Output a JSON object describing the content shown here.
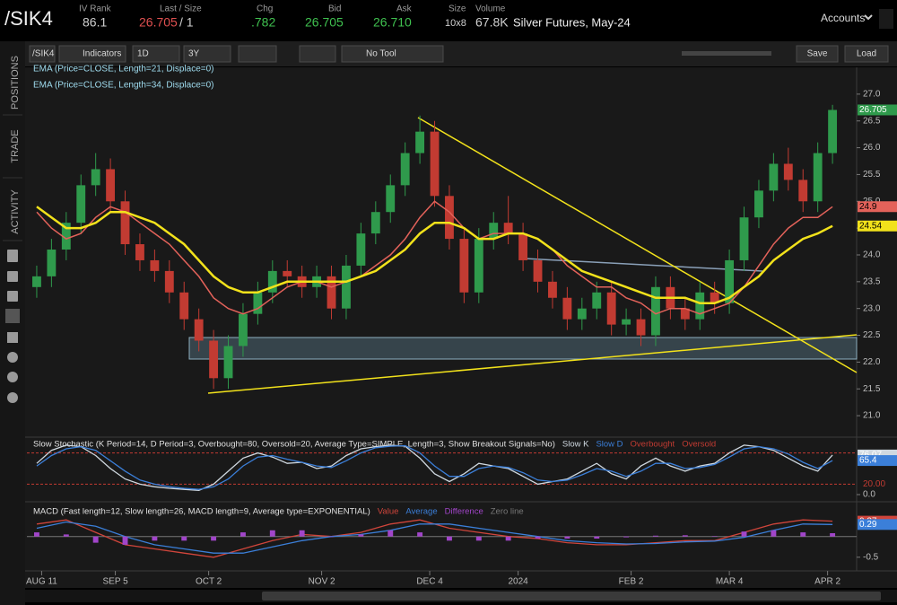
{
  "header": {
    "symbol": "/SIK4",
    "iv_rank_label": "IV Rank",
    "iv_rank": "86.1",
    "last_label": "Last / Size",
    "last": "26.705",
    "size": "/ 1",
    "chg_label": "Chg",
    "chg": ".782",
    "bid_label": "Bid",
    "bid": "26.705",
    "ask_label": "Ask",
    "ask": "26.710",
    "size2_label": "Size",
    "size2": "10x8",
    "volume_label": "Volume",
    "volume": "67.8K",
    "description": "Silver Futures, May-24",
    "accounts": "Accounts"
  },
  "sidebar": [
    "POSITIONS",
    "TRADE",
    "ACTIVITY"
  ],
  "toolbar": {
    "symbol": "/SIK4",
    "indicators": "Indicators",
    "aggregation": "1D",
    "range": "3Y",
    "tool": "No Tool",
    "save": "Save",
    "load": "Load"
  },
  "chart_data": [
    {
      "type": "candlestick",
      "x": [
        0,
        3,
        6,
        9,
        12,
        15,
        18,
        21,
        24,
        27,
        30,
        33,
        36,
        39,
        42,
        45,
        48,
        51,
        54,
        57,
        60,
        63,
        66,
        69,
        72,
        75,
        78,
        81,
        84,
        87,
        90,
        93,
        96,
        99,
        102,
        105,
        108,
        111,
        114,
        117,
        120,
        123,
        126,
        129,
        132,
        135,
        138,
        141,
        144,
        147,
        150,
        153,
        156,
        159,
        162
      ],
      "open": [
        23.4,
        23.6,
        24.1,
        24.6,
        25.3,
        25.6,
        25.0,
        24.2,
        23.9,
        23.7,
        23.3,
        22.8,
        22.4,
        21.7,
        22.3,
        22.9,
        23.3,
        23.7,
        23.6,
        23.4,
        23.6,
        23.0,
        23.8,
        24.4,
        24.8,
        25.3,
        25.9,
        26.3,
        25.1,
        24.3,
        23.3,
        24.3,
        24.6,
        24.4,
        23.9,
        23.5,
        23.2,
        22.8,
        23.0,
        23.3,
        22.7,
        22.8,
        22.5,
        23.4,
        23.0,
        22.8,
        23.3,
        23.1,
        23.9,
        24.7,
        25.2,
        25.7,
        25.4,
        25.0,
        25.9
      ],
      "high": [
        23.8,
        24.3,
        24.8,
        25.5,
        25.9,
        25.8,
        25.2,
        24.4,
        24.1,
        23.9,
        23.5,
        23.0,
        22.6,
        22.5,
        23.1,
        23.5,
        23.9,
        23.9,
        23.8,
        23.8,
        23.8,
        24.0,
        24.6,
        25.0,
        25.5,
        26.1,
        26.6,
        26.5,
        25.3,
        24.5,
        24.5,
        24.8,
        25.1,
        24.6,
        24.1,
        23.7,
        23.4,
        23.2,
        23.5,
        23.5,
        23.0,
        23.0,
        23.6,
        23.6,
        23.2,
        23.5,
        23.5,
        24.1,
        24.9,
        25.4,
        25.9,
        26.0,
        25.6,
        26.1,
        26.8
      ],
      "low": [
        23.2,
        23.4,
        23.9,
        24.4,
        25.1,
        24.8,
        24.0,
        23.7,
        23.5,
        23.1,
        22.6,
        22.2,
        21.5,
        21.5,
        22.1,
        22.7,
        23.1,
        23.4,
        23.2,
        23.2,
        22.8,
        22.8,
        23.6,
        24.2,
        24.6,
        25.1,
        25.7,
        24.9,
        24.1,
        23.1,
        23.1,
        24.1,
        24.2,
        23.7,
        23.3,
        23.0,
        22.6,
        22.6,
        22.8,
        22.5,
        22.5,
        22.3,
        22.3,
        22.8,
        22.6,
        22.6,
        22.9,
        22.9,
        23.7,
        24.5,
        25.0,
        25.2,
        24.8,
        24.8,
        25.7
      ],
      "close": [
        23.6,
        24.1,
        24.6,
        25.3,
        25.6,
        25.0,
        24.2,
        23.9,
        23.7,
        23.3,
        22.8,
        22.4,
        21.7,
        22.3,
        22.9,
        23.3,
        23.7,
        23.6,
        23.4,
        23.6,
        23.0,
        23.8,
        24.4,
        24.8,
        25.3,
        25.9,
        26.3,
        25.1,
        24.3,
        23.3,
        24.3,
        24.6,
        24.4,
        23.9,
        23.5,
        23.2,
        22.8,
        23.0,
        23.3,
        22.7,
        22.8,
        22.5,
        23.4,
        23.0,
        22.8,
        23.3,
        23.1,
        23.9,
        24.7,
        25.2,
        25.7,
        25.4,
        25.0,
        25.9,
        26.705
      ],
      "up_color": "#2f9a4c",
      "down_color": "#c23b32",
      "last_color": "#2f9a4c",
      "series": [
        {
          "name": "EMA (Price=CLOSE, Length=21, Displace=0)",
          "color": "#e3625a",
          "values": [
            24.8,
            24.5,
            24.3,
            24.4,
            24.7,
            24.9,
            24.8,
            24.6,
            24.4,
            24.2,
            23.9,
            23.6,
            23.2,
            23.0,
            22.9,
            23.0,
            23.2,
            23.4,
            23.5,
            23.5,
            23.4,
            23.5,
            23.6,
            23.8,
            24.0,
            24.3,
            24.7,
            25.0,
            24.8,
            24.5,
            24.3,
            24.4,
            24.4,
            24.4,
            24.3,
            24.1,
            23.8,
            23.6,
            23.4,
            23.4,
            23.2,
            23.1,
            22.9,
            23.0,
            23.0,
            22.9,
            23.0,
            23.1,
            23.4,
            23.8,
            24.2,
            24.5,
            24.7,
            24.7,
            24.9
          ]
        },
        {
          "name": "EMA (Price=CLOSE, Length=34, Displace=0)",
          "color": "#f2e21b",
          "values": [
            24.9,
            24.7,
            24.5,
            24.5,
            24.6,
            24.8,
            24.8,
            24.7,
            24.6,
            24.4,
            24.2,
            23.9,
            23.6,
            23.4,
            23.3,
            23.3,
            23.4,
            23.5,
            23.5,
            23.5,
            23.5,
            23.5,
            23.6,
            23.7,
            23.9,
            24.1,
            24.4,
            24.6,
            24.6,
            24.5,
            24.3,
            24.3,
            24.4,
            24.4,
            24.3,
            24.1,
            23.9,
            23.7,
            23.6,
            23.5,
            23.4,
            23.3,
            23.2,
            23.2,
            23.2,
            23.1,
            23.1,
            23.2,
            23.4,
            23.6,
            23.9,
            24.1,
            24.3,
            24.4,
            24.54
          ]
        }
      ],
      "xlim": [
        -2,
        166
      ],
      "ylim": [
        20.65,
        27.45
      ],
      "xticks": [
        {
          "value": 1,
          "label": "AUG 11"
        },
        {
          "value": 16,
          "label": "SEP 5"
        },
        {
          "value": 35,
          "label": "OCT 2"
        },
        {
          "value": 58,
          "label": "NOV 2"
        },
        {
          "value": 80,
          "label": "DEC 4"
        },
        {
          "value": 98,
          "label": "2024"
        },
        {
          "value": 121,
          "label": "FEB 2"
        },
        {
          "value": 141,
          "label": "MAR 4"
        },
        {
          "value": 161,
          "label": "APR 2"
        }
      ],
      "yticks": [
        {
          "value": 21,
          "label": "21.0"
        },
        21.5,
        {
          "value": 22,
          "label": "22.0"
        },
        22.5,
        {
          "value": 23,
          "label": "23.0"
        },
        23.5,
        {
          "value": 24,
          "label": "24.0"
        },
        24.5,
        {
          "value": 25,
          "label": "25.0"
        },
        25.5,
        {
          "value": 26,
          "label": "26.0"
        },
        26.5,
        {
          "value": 27,
          "label": "27.0"
        }
      ]
    },
    {
      "type": "line",
      "title": "Slow Stochastic (K Period=14, D Period=3, Overbought=80, Oversold=20, Average Type=SIMPLE, Length=3, Show Breakout Signals=No)",
      "x": [
        0,
        3,
        6,
        9,
        12,
        15,
        18,
        21,
        24,
        27,
        30,
        33,
        36,
        39,
        42,
        45,
        48,
        51,
        54,
        57,
        60,
        63,
        66,
        69,
        72,
        75,
        78,
        81,
        84,
        87,
        90,
        93,
        96,
        99,
        102,
        105,
        108,
        111,
        114,
        117,
        120,
        123,
        126,
        129,
        132,
        135,
        138,
        141,
        144,
        147,
        150,
        153,
        156,
        159,
        162
      ],
      "series": [
        {
          "name": "Slow K",
          "color": "#cfd8e0",
          "values": [
            60,
            85,
            95,
            92,
            75,
            50,
            30,
            20,
            15,
            12,
            10,
            8,
            20,
            45,
            70,
            80,
            72,
            60,
            62,
            50,
            55,
            75,
            88,
            92,
            95,
            93,
            70,
            40,
            25,
            40,
            60,
            55,
            50,
            35,
            20,
            25,
            30,
            45,
            60,
            40,
            30,
            55,
            70,
            55,
            45,
            55,
            60,
            80,
            95,
            92,
            85,
            70,
            55,
            45,
            76.07
          ]
        },
        {
          "name": "Slow D",
          "color": "#3b7fd9",
          "values": [
            55,
            75,
            88,
            92,
            85,
            65,
            45,
            28,
            20,
            15,
            12,
            10,
            15,
            30,
            55,
            72,
            75,
            68,
            62,
            55,
            52,
            65,
            80,
            90,
            93,
            94,
            80,
            55,
            35,
            35,
            50,
            55,
            52,
            42,
            28,
            25,
            28,
            38,
            50,
            45,
            35,
            45,
            60,
            60,
            50,
            52,
            58,
            72,
            88,
            92,
            88,
            78,
            62,
            50,
            65.4
          ]
        }
      ],
      "overbought": {
        "name": "Overbought",
        "value": 80,
        "color": "#c23b32"
      },
      "oversold": {
        "name": "Oversold",
        "value": 20,
        "label": "20.00",
        "color": "#c23b32"
      },
      "xlim": [
        -2,
        166
      ],
      "ylim": [
        0,
        100
      ],
      "yticks": [
        {
          "value": 0,
          "label": "0.0"
        }
      ]
    },
    {
      "type": "line",
      "title": "MACD (Fast length=12, Slow length=26, MACD length=9, Average type=EXPONENTIAL)",
      "x": [
        0,
        6,
        12,
        18,
        24,
        30,
        36,
        42,
        48,
        54,
        60,
        66,
        72,
        78,
        84,
        90,
        96,
        102,
        108,
        114,
        120,
        126,
        132,
        138,
        144,
        150,
        156,
        162
      ],
      "series": [
        {
          "name": "Value",
          "color": "#d0453b",
          "values": [
            0.3,
            0.4,
            0.1,
            -0.2,
            -0.3,
            -0.4,
            -0.5,
            -0.3,
            -0.1,
            0.05,
            0.0,
            0.1,
            0.3,
            0.4,
            0.2,
            0.1,
            0.0,
            -0.05,
            -0.15,
            -0.2,
            -0.2,
            -0.15,
            -0.1,
            -0.1,
            0.1,
            0.3,
            0.4,
            0.37
          ]
        },
        {
          "name": "Average",
          "color": "#3b7fd9",
          "values": [
            0.2,
            0.35,
            0.25,
            0.0,
            -0.2,
            -0.3,
            -0.4,
            -0.4,
            -0.25,
            -0.1,
            0.0,
            0.05,
            0.15,
            0.3,
            0.3,
            0.2,
            0.1,
            0.0,
            -0.1,
            -0.15,
            -0.18,
            -0.17,
            -0.13,
            -0.11,
            -0.02,
            0.15,
            0.3,
            0.29
          ]
        },
        {
          "name": "Difference",
          "type": "bar",
          "color": "#a145c9",
          "values": [
            0.1,
            0.05,
            -0.15,
            -0.2,
            -0.1,
            -0.1,
            -0.1,
            0.1,
            0.15,
            0.15,
            0.0,
            0.05,
            0.15,
            0.1,
            -0.1,
            -0.1,
            -0.1,
            -0.05,
            -0.05,
            -0.05,
            -0.02,
            0.02,
            0.03,
            0.01,
            0.12,
            0.15,
            0.1,
            0.08
          ]
        }
      ],
      "zero_line": {
        "name": "Zero line",
        "value": 0,
        "color": "#777777"
      },
      "xlim": [
        -2,
        166
      ],
      "ylim": [
        -0.7,
        0.6
      ],
      "yticks": [
        -0.5
      ]
    }
  ]
}
